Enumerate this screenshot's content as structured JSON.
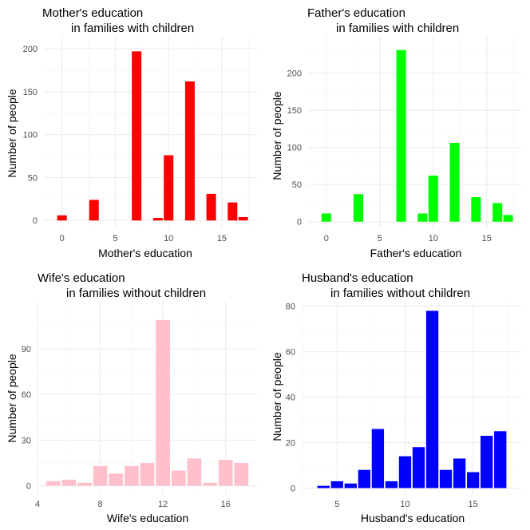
{
  "chart_data": [
    {
      "type": "bar",
      "title_lines": [
        "Mother's education",
        "in families with children"
      ],
      "xlabel": "Mother's education",
      "ylabel": "Number of people",
      "color": "#ff0000",
      "x": [
        0,
        3,
        7,
        9,
        10,
        12,
        14,
        16,
        17
      ],
      "values": [
        6,
        24,
        197,
        3,
        76,
        162,
        31,
        21,
        4
      ],
      "xlim": [
        -1.7,
        18.3
      ],
      "ylim": [
        -10,
        215
      ],
      "xticks": [
        0,
        5,
        10,
        15
      ],
      "yticks": [
        0,
        50,
        100,
        150,
        200
      ],
      "grid": true
    },
    {
      "type": "bar",
      "title_lines": [
        "Father's education",
        "in families with children"
      ],
      "xlabel": "Father's education",
      "ylabel": "Number of people",
      "color": "#00ff00",
      "x": [
        0,
        3,
        7,
        9,
        10,
        12,
        14,
        16,
        17
      ],
      "values": [
        11,
        37,
        231,
        11,
        62,
        106,
        33,
        25,
        9
      ],
      "xlim": [
        -1.7,
        18.3
      ],
      "ylim": [
        -10,
        250
      ],
      "xticks": [
        0,
        5,
        10,
        15
      ],
      "yticks": [
        0,
        50,
        100,
        150,
        200
      ],
      "grid": true
    },
    {
      "type": "bar",
      "title_lines": [
        "Wife's education",
        "in families without children"
      ],
      "xlabel": "Wife's education",
      "ylabel": "Number of people",
      "color": "#ffc0cb",
      "x": [
        5,
        6,
        7,
        8,
        9,
        10,
        11,
        12,
        13,
        14,
        15,
        16,
        17
      ],
      "values": [
        3,
        4,
        2,
        13,
        8,
        13,
        15,
        109,
        10,
        18,
        2,
        17,
        15
      ],
      "xlim": [
        4,
        18
      ],
      "ylim": [
        -6,
        121
      ],
      "xticks": [
        4,
        8,
        12,
        16
      ],
      "yticks": [
        0,
        30,
        60,
        90
      ],
      "grid": true
    },
    {
      "type": "bar",
      "title_lines": [
        "Husband's education",
        "in families without children"
      ],
      "xlabel": "Husband's education",
      "ylabel": "Number of people",
      "color": "#0000ff",
      "x": [
        4,
        5,
        6,
        7,
        8,
        9,
        10,
        11,
        12,
        13,
        14,
        15,
        16,
        17
      ],
      "values": [
        1,
        3,
        2,
        8,
        26,
        3,
        14,
        18,
        78,
        8,
        13,
        7,
        23,
        25
      ],
      "xlim": [
        2.4,
        18.6
      ],
      "ylim": [
        -3,
        82
      ],
      "xticks": [
        5,
        10,
        15
      ],
      "yticks": [
        0,
        20,
        40,
        60,
        80
      ],
      "grid": true
    }
  ]
}
